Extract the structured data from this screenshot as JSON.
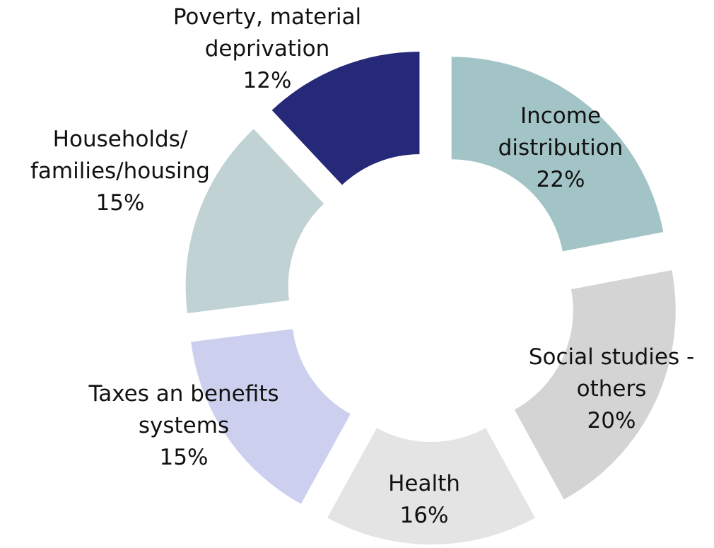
{
  "chart_data": {
    "type": "donut",
    "categories": [
      "Income distribution",
      "Social studies - others",
      "Health",
      "Taxes an benefits systems",
      "Households/ families/housing",
      "Poverty, material deprivation"
    ],
    "values": [
      22,
      20,
      16,
      15,
      15,
      12
    ],
    "value_labels": [
      "22%",
      "20%",
      "16%",
      "15%",
      "15%",
      "12%"
    ],
    "colors": [
      "#a3c4c6",
      "#d4d4d4",
      "#e4e4e4",
      "#cccfee",
      "#c0d2d4",
      "#262878"
    ]
  }
}
